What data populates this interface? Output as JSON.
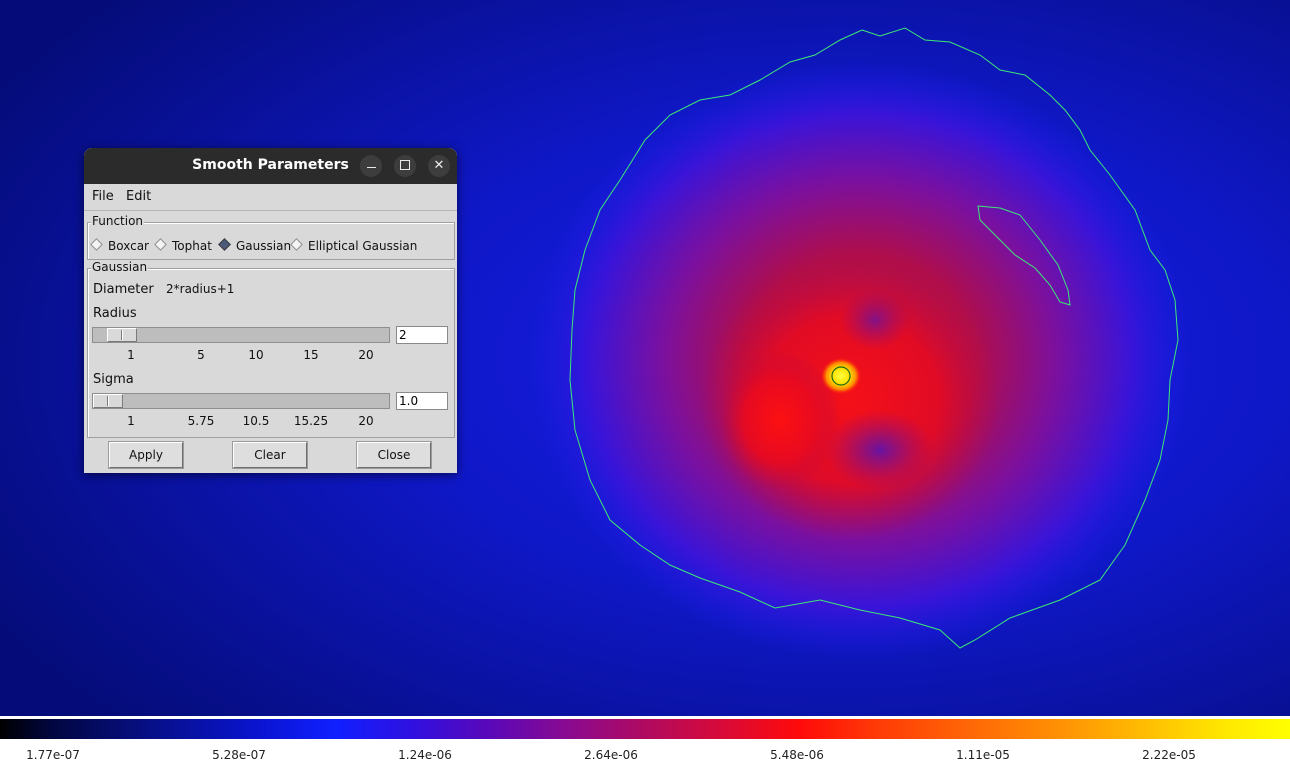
{
  "dialog": {
    "title": "Smooth Parameters",
    "window_controls": [
      "minimize-icon",
      "maximize-icon",
      "close-icon"
    ],
    "menu": [
      "File",
      "Edit"
    ],
    "function_group": {
      "label": "Function",
      "options": [
        "Boxcar",
        "Tophat",
        "Gaussian",
        "Elliptical Gaussian"
      ],
      "selected": "Gaussian"
    },
    "gaussian_group": {
      "label": "Gaussian",
      "diameter_label": "Diameter",
      "diameter_value": "2*radius+1",
      "radius": {
        "label": "Radius",
        "value": "2",
        "min": 1,
        "max": 20,
        "ticks": [
          "1",
          "5",
          "10",
          "15",
          "20"
        ]
      },
      "sigma": {
        "label": "Sigma",
        "value": "1.0",
        "min": 1,
        "max": 20,
        "ticks": [
          "1",
          "5.75",
          "10.5",
          "15.25",
          "20"
        ]
      }
    },
    "buttons": {
      "apply": "Apply",
      "clear": "Clear",
      "close": "Close"
    }
  },
  "colorbar": {
    "ticks": [
      "1.77e-07",
      "5.28e-07",
      "1.24e-06",
      "2.64e-06",
      "5.48e-06",
      "1.11e-05",
      "2.22e-05"
    ]
  },
  "colors": {
    "background_blue": "#0a0f9a",
    "contour": "#3ce878",
    "halo_red": "#e80a30",
    "core_yellow": "#ffe000"
  }
}
